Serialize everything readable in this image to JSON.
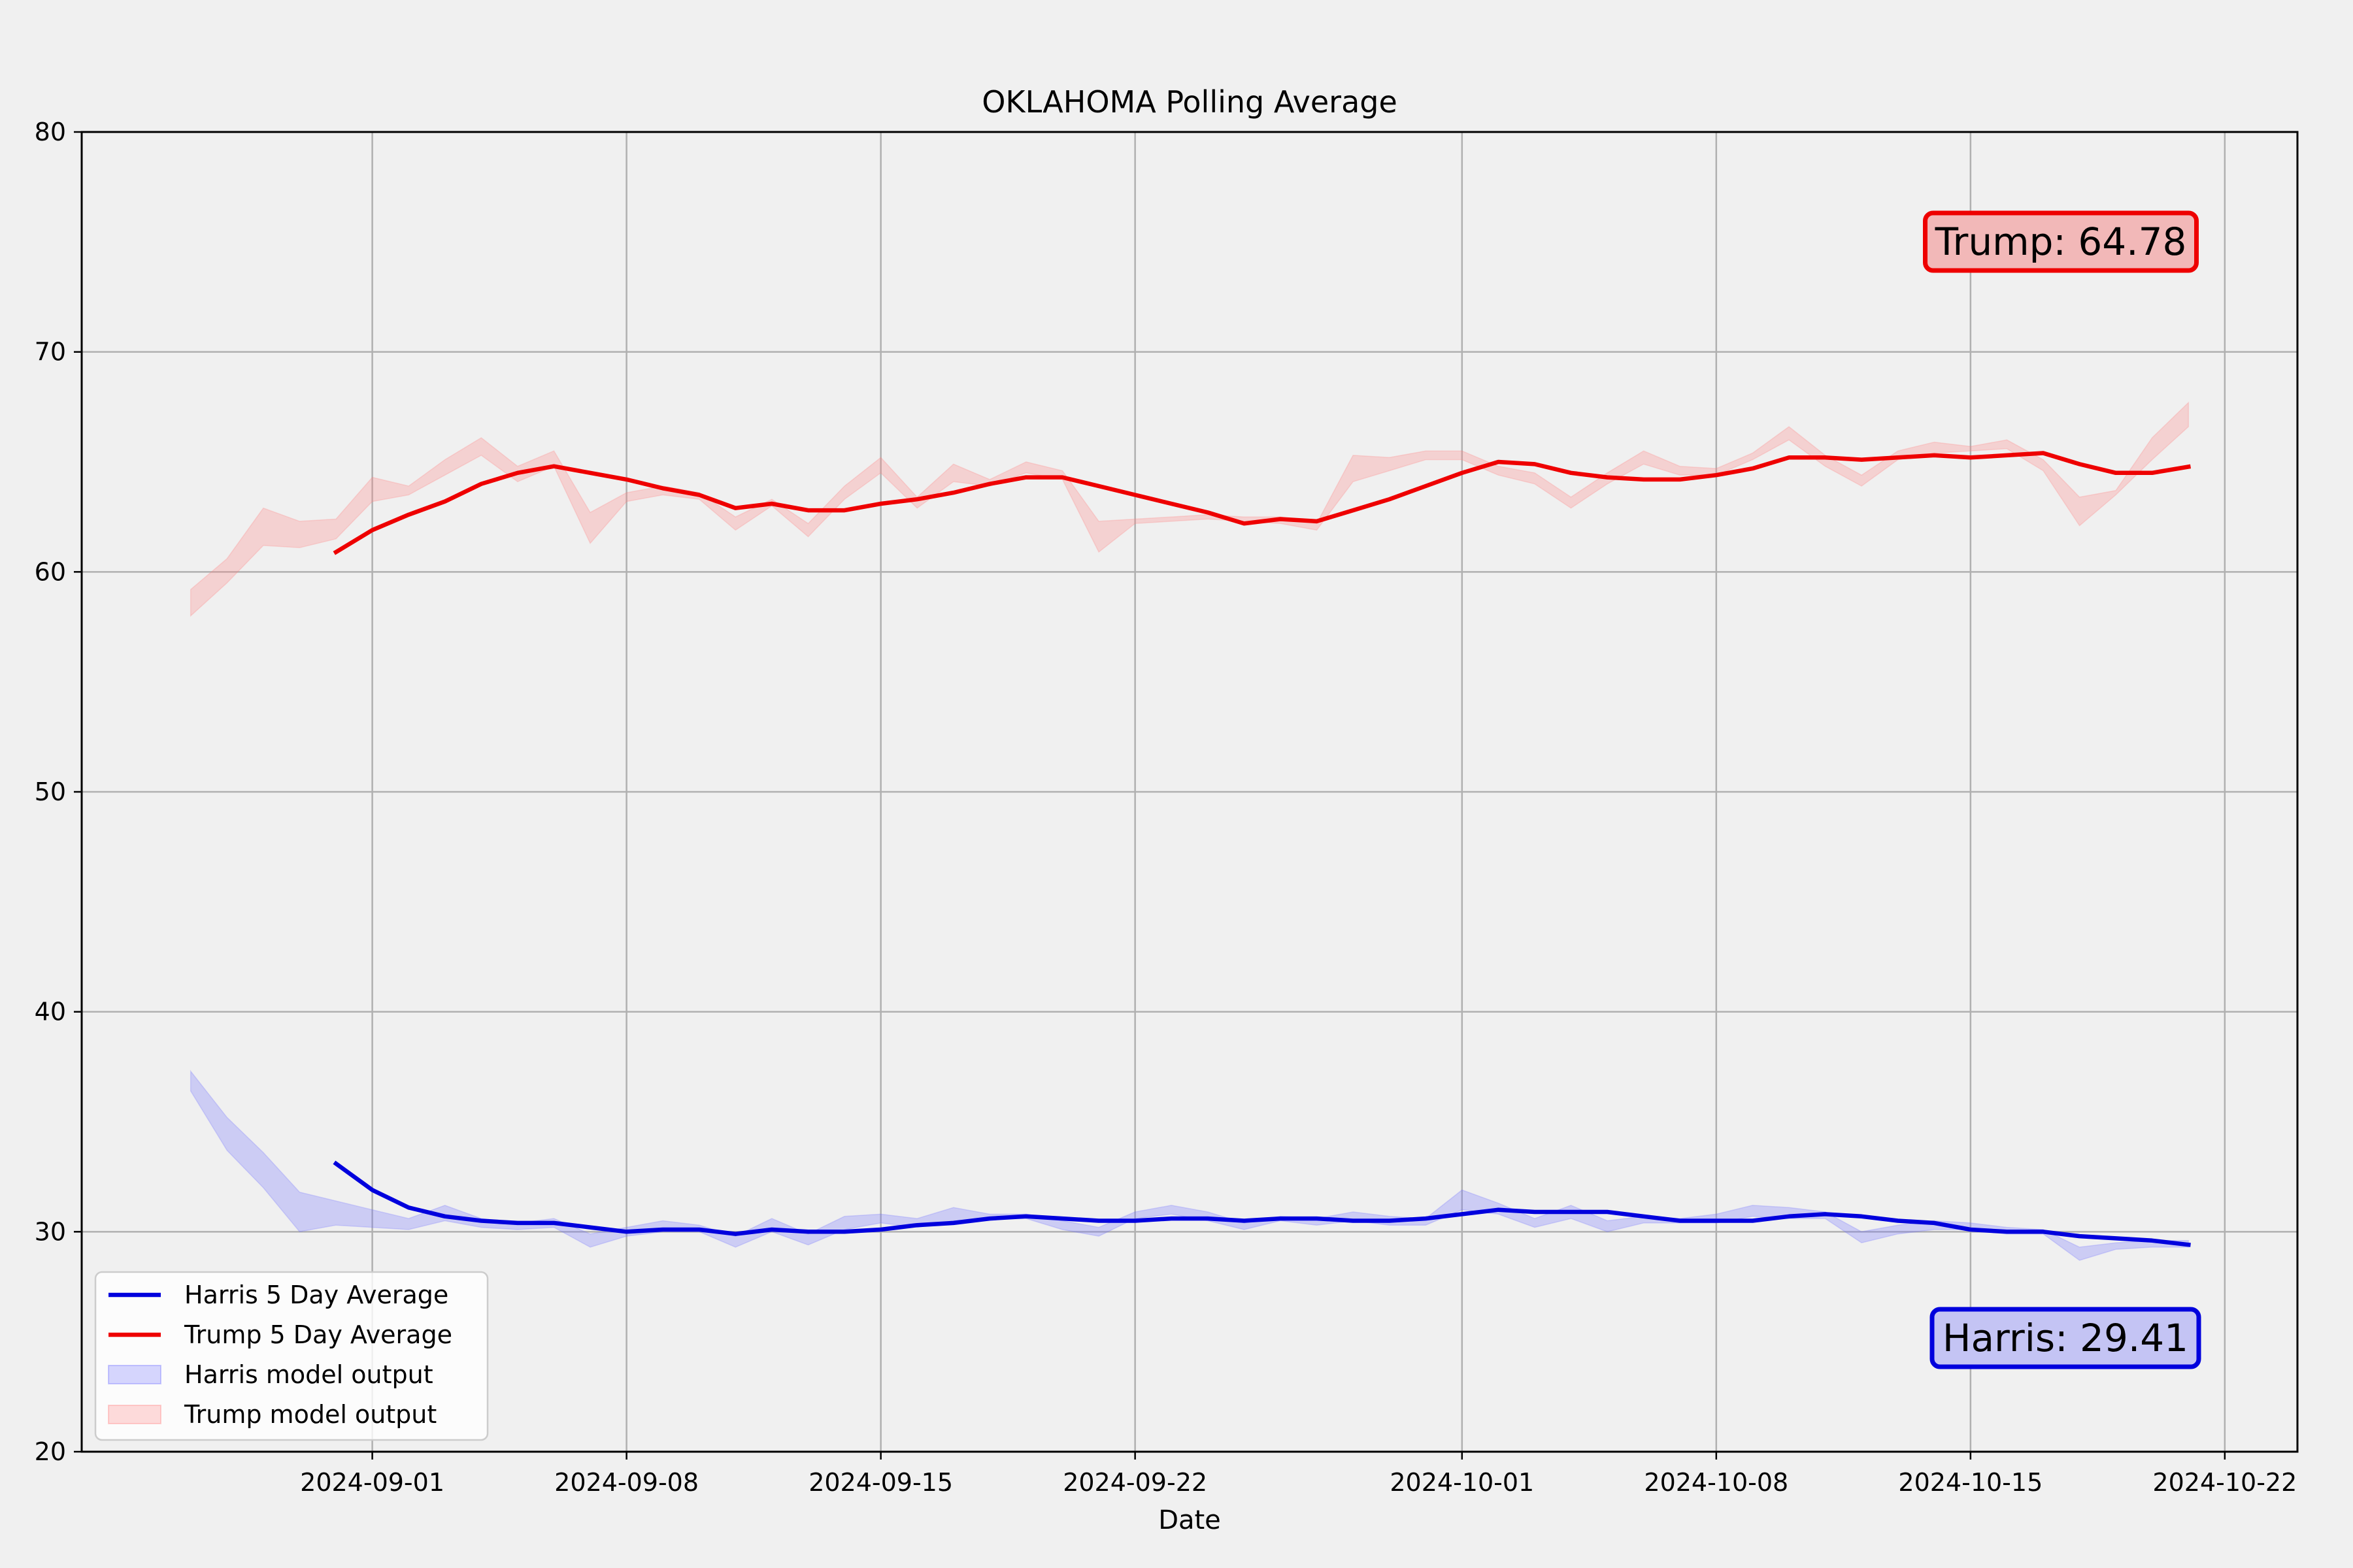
{
  "chart_data": {
    "type": "line",
    "title": "OKLAHOMA Polling Average",
    "xlabel": "Date",
    "ylabel": "",
    "ylim": [
      20,
      80
    ],
    "xlim": [
      "2024-08-24",
      "2024-10-24"
    ],
    "grid": true,
    "legend_position": "bottom-left",
    "y_ticks": [
      "20",
      "30",
      "40",
      "50",
      "60",
      "70",
      "80"
    ],
    "x_ticks": [
      "2024-09-01",
      "2024-09-08",
      "2024-09-15",
      "2024-09-22",
      "2024-10-01",
      "2024-10-08",
      "2024-10-15",
      "2024-10-22"
    ],
    "series": [
      {
        "name": "Harris 5 Day Average",
        "kind": "line",
        "color": "#0000dd",
        "points": [
          [
            "2024-08-31",
            33.1
          ],
          [
            "2024-09-01",
            31.9
          ],
          [
            "2024-09-02",
            31.1
          ],
          [
            "2024-09-03",
            30.7
          ],
          [
            "2024-09-04",
            30.5
          ],
          [
            "2024-09-05",
            30.4
          ],
          [
            "2024-09-06",
            30.4
          ],
          [
            "2024-09-07",
            30.2
          ],
          [
            "2024-09-08",
            30.0
          ],
          [
            "2024-09-09",
            30.1
          ],
          [
            "2024-09-10",
            30.1
          ],
          [
            "2024-09-11",
            29.9
          ],
          [
            "2024-09-12",
            30.1
          ],
          [
            "2024-09-13",
            30.0
          ],
          [
            "2024-09-14",
            30.0
          ],
          [
            "2024-09-15",
            30.1
          ],
          [
            "2024-09-16",
            30.3
          ],
          [
            "2024-09-17",
            30.4
          ],
          [
            "2024-09-18",
            30.6
          ],
          [
            "2024-09-19",
            30.7
          ],
          [
            "2024-09-20",
            30.6
          ],
          [
            "2024-09-21",
            30.5
          ],
          [
            "2024-09-22",
            30.5
          ],
          [
            "2024-09-23",
            30.6
          ],
          [
            "2024-09-24",
            30.6
          ],
          [
            "2024-09-25",
            30.5
          ],
          [
            "2024-09-26",
            30.6
          ],
          [
            "2024-09-27",
            30.6
          ],
          [
            "2024-09-28",
            30.5
          ],
          [
            "2024-09-29",
            30.5
          ],
          [
            "2024-09-30",
            30.6
          ],
          [
            "2024-10-01",
            30.8
          ],
          [
            "2024-10-02",
            31.0
          ],
          [
            "2024-10-03",
            30.9
          ],
          [
            "2024-10-04",
            30.9
          ],
          [
            "2024-10-05",
            30.9
          ],
          [
            "2024-10-06",
            30.7
          ],
          [
            "2024-10-07",
            30.5
          ],
          [
            "2024-10-08",
            30.5
          ],
          [
            "2024-10-09",
            30.5
          ],
          [
            "2024-10-10",
            30.7
          ],
          [
            "2024-10-11",
            30.8
          ],
          [
            "2024-10-12",
            30.7
          ],
          [
            "2024-10-13",
            30.5
          ],
          [
            "2024-10-14",
            30.4
          ],
          [
            "2024-10-15",
            30.1
          ],
          [
            "2024-10-16",
            30.0
          ],
          [
            "2024-10-17",
            30.0
          ],
          [
            "2024-10-18",
            29.8
          ],
          [
            "2024-10-19",
            29.7
          ],
          [
            "2024-10-20",
            29.6
          ],
          [
            "2024-10-21",
            29.41
          ]
        ]
      },
      {
        "name": "Trump 5 Day Average",
        "kind": "line",
        "color": "#ee0000",
        "points": [
          [
            "2024-08-31",
            60.9
          ],
          [
            "2024-09-01",
            61.9
          ],
          [
            "2024-09-02",
            62.6
          ],
          [
            "2024-09-03",
            63.2
          ],
          [
            "2024-09-04",
            64.0
          ],
          [
            "2024-09-05",
            64.5
          ],
          [
            "2024-09-06",
            64.8
          ],
          [
            "2024-09-07",
            64.5
          ],
          [
            "2024-09-08",
            64.2
          ],
          [
            "2024-09-09",
            63.8
          ],
          [
            "2024-09-10",
            63.5
          ],
          [
            "2024-09-11",
            62.9
          ],
          [
            "2024-09-12",
            63.1
          ],
          [
            "2024-09-13",
            62.8
          ],
          [
            "2024-09-14",
            62.8
          ],
          [
            "2024-09-15",
            63.1
          ],
          [
            "2024-09-16",
            63.3
          ],
          [
            "2024-09-17",
            63.6
          ],
          [
            "2024-09-18",
            64.0
          ],
          [
            "2024-09-19",
            64.3
          ],
          [
            "2024-09-20",
            64.3
          ],
          [
            "2024-09-21",
            63.9
          ],
          [
            "2024-09-22",
            63.5
          ],
          [
            "2024-09-23",
            63.1
          ],
          [
            "2024-09-24",
            62.7
          ],
          [
            "2024-09-25",
            62.2
          ],
          [
            "2024-09-26",
            62.4
          ],
          [
            "2024-09-27",
            62.3
          ],
          [
            "2024-09-28",
            62.8
          ],
          [
            "2024-09-29",
            63.3
          ],
          [
            "2024-09-30",
            63.9
          ],
          [
            "2024-10-01",
            64.5
          ],
          [
            "2024-10-02",
            65.0
          ],
          [
            "2024-10-03",
            64.9
          ],
          [
            "2024-10-04",
            64.5
          ],
          [
            "2024-10-05",
            64.3
          ],
          [
            "2024-10-06",
            64.2
          ],
          [
            "2024-10-07",
            64.2
          ],
          [
            "2024-10-08",
            64.4
          ],
          [
            "2024-10-09",
            64.7
          ],
          [
            "2024-10-10",
            65.2
          ],
          [
            "2024-10-11",
            65.2
          ],
          [
            "2024-10-12",
            65.1
          ],
          [
            "2024-10-13",
            65.2
          ],
          [
            "2024-10-14",
            65.3
          ],
          [
            "2024-10-15",
            65.2
          ],
          [
            "2024-10-16",
            65.3
          ],
          [
            "2024-10-17",
            65.4
          ],
          [
            "2024-10-18",
            64.9
          ],
          [
            "2024-10-19",
            64.5
          ],
          [
            "2024-10-20",
            64.5
          ],
          [
            "2024-10-21",
            64.78
          ]
        ]
      },
      {
        "name": "Harris model output",
        "kind": "band",
        "color": "#7070ff",
        "points": [
          [
            "2024-08-27",
            36.4,
            37.3
          ],
          [
            "2024-08-28",
            33.7,
            35.2
          ],
          [
            "2024-08-29",
            32.0,
            33.6
          ],
          [
            "2024-08-30",
            30.0,
            31.8
          ],
          [
            "2024-08-31",
            30.3,
            31.4
          ],
          [
            "2024-09-01",
            30.2,
            31.0
          ],
          [
            "2024-09-02",
            30.1,
            30.6
          ],
          [
            "2024-09-03",
            30.5,
            31.2
          ],
          [
            "2024-09-04",
            30.2,
            30.6
          ],
          [
            "2024-09-05",
            30.1,
            30.4
          ],
          [
            "2024-09-06",
            30.2,
            30.6
          ],
          [
            "2024-09-07",
            29.3,
            29.9
          ],
          [
            "2024-09-08",
            29.8,
            30.2
          ],
          [
            "2024-09-09",
            30.0,
            30.5
          ],
          [
            "2024-09-10",
            30.0,
            30.3
          ],
          [
            "2024-09-11",
            29.3,
            29.8
          ],
          [
            "2024-09-12",
            30.0,
            30.6
          ],
          [
            "2024-09-13",
            29.4,
            29.9
          ],
          [
            "2024-09-14",
            30.1,
            30.7
          ],
          [
            "2024-09-15",
            30.4,
            30.8
          ],
          [
            "2024-09-16",
            30.2,
            30.6
          ],
          [
            "2024-09-17",
            30.5,
            31.1
          ],
          [
            "2024-09-18",
            30.6,
            30.8
          ],
          [
            "2024-09-19",
            30.6,
            30.8
          ],
          [
            "2024-09-20",
            30.1,
            30.5
          ],
          [
            "2024-09-21",
            29.8,
            30.2
          ],
          [
            "2024-09-22",
            30.6,
            30.9
          ],
          [
            "2024-09-23",
            30.8,
            31.2
          ],
          [
            "2024-09-24",
            30.5,
            30.9
          ],
          [
            "2024-09-25",
            30.1,
            30.4
          ],
          [
            "2024-09-26",
            30.5,
            30.7
          ],
          [
            "2024-09-27",
            30.3,
            30.6
          ],
          [
            "2024-09-28",
            30.5,
            30.9
          ],
          [
            "2024-09-29",
            30.3,
            30.7
          ],
          [
            "2024-09-30",
            30.3,
            30.6
          ],
          [
            "2024-10-01",
            31.0,
            31.9
          ],
          [
            "2024-10-02",
            30.8,
            31.3
          ],
          [
            "2024-10-03",
            30.2,
            30.6
          ],
          [
            "2024-10-04",
            30.6,
            31.2
          ],
          [
            "2024-10-05",
            30.0,
            30.5
          ],
          [
            "2024-10-06",
            30.4,
            30.7
          ],
          [
            "2024-10-07",
            30.4,
            30.6
          ],
          [
            "2024-10-08",
            30.4,
            30.8
          ],
          [
            "2024-10-09",
            30.7,
            31.2
          ],
          [
            "2024-10-10",
            30.6,
            31.1
          ],
          [
            "2024-10-11",
            30.6,
            30.9
          ],
          [
            "2024-10-12",
            29.5,
            30.0
          ],
          [
            "2024-10-13",
            29.9,
            30.3
          ],
          [
            "2024-10-14",
            30.1,
            30.5
          ],
          [
            "2024-10-15",
            30.1,
            30.4
          ],
          [
            "2024-10-16",
            29.9,
            30.2
          ],
          [
            "2024-10-17",
            29.9,
            30.1
          ],
          [
            "2024-10-18",
            28.7,
            29.3
          ],
          [
            "2024-10-19",
            29.2,
            29.5
          ],
          [
            "2024-10-20",
            29.3,
            29.6
          ],
          [
            "2024-10-21",
            29.3,
            29.6
          ]
        ]
      },
      {
        "name": "Trump model output",
        "kind": "band",
        "color": "#ff8080",
        "points": [
          [
            "2024-08-27",
            58.0,
            59.2
          ],
          [
            "2024-08-28",
            59.5,
            60.6
          ],
          [
            "2024-08-29",
            61.2,
            62.9
          ],
          [
            "2024-08-30",
            61.1,
            62.3
          ],
          [
            "2024-08-31",
            61.5,
            62.4
          ],
          [
            "2024-09-01",
            63.2,
            64.3
          ],
          [
            "2024-09-02",
            63.5,
            63.9
          ],
          [
            "2024-09-03",
            64.4,
            65.1
          ],
          [
            "2024-09-04",
            65.3,
            66.1
          ],
          [
            "2024-09-05",
            64.1,
            64.8
          ],
          [
            "2024-09-06",
            64.8,
            65.5
          ],
          [
            "2024-09-07",
            61.3,
            62.7
          ],
          [
            "2024-09-08",
            63.2,
            63.6
          ],
          [
            "2024-09-09",
            63.5,
            63.9
          ],
          [
            "2024-09-10",
            63.3,
            63.6
          ],
          [
            "2024-09-11",
            61.9,
            62.5
          ],
          [
            "2024-09-12",
            63.0,
            63.3
          ],
          [
            "2024-09-13",
            61.6,
            62.2
          ],
          [
            "2024-09-14",
            63.3,
            63.9
          ],
          [
            "2024-09-15",
            64.5,
            65.2
          ],
          [
            "2024-09-16",
            62.9,
            63.4
          ],
          [
            "2024-09-17",
            64.1,
            64.9
          ],
          [
            "2024-09-18",
            63.9,
            64.2
          ],
          [
            "2024-09-19",
            64.5,
            65.0
          ],
          [
            "2024-09-20",
            64.2,
            64.6
          ],
          [
            "2024-09-21",
            60.9,
            62.3
          ],
          [
            "2024-09-22",
            62.2,
            62.4
          ],
          [
            "2024-09-23",
            62.3,
            62.5
          ],
          [
            "2024-09-24",
            62.4,
            62.6
          ],
          [
            "2024-09-25",
            62.3,
            62.5
          ],
          [
            "2024-09-26",
            62.2,
            62.5
          ],
          [
            "2024-09-27",
            61.9,
            62.2
          ],
          [
            "2024-09-28",
            64.1,
            65.3
          ],
          [
            "2024-09-29",
            64.6,
            65.2
          ],
          [
            "2024-09-30",
            65.1,
            65.5
          ],
          [
            "2024-10-01",
            65.1,
            65.5
          ],
          [
            "2024-10-02",
            64.4,
            64.8
          ],
          [
            "2024-10-03",
            64.0,
            64.5
          ],
          [
            "2024-10-04",
            62.9,
            63.4
          ],
          [
            "2024-10-05",
            64.0,
            64.5
          ],
          [
            "2024-10-06",
            64.9,
            65.5
          ],
          [
            "2024-10-07",
            64.4,
            64.8
          ],
          [
            "2024-10-08",
            64.4,
            64.7
          ],
          [
            "2024-10-09",
            65.1,
            65.4
          ],
          [
            "2024-10-10",
            66.0,
            66.6
          ],
          [
            "2024-10-11",
            64.8,
            65.3
          ],
          [
            "2024-10-12",
            63.9,
            64.4
          ],
          [
            "2024-10-13",
            65.1,
            65.5
          ],
          [
            "2024-10-14",
            65.4,
            65.9
          ],
          [
            "2024-10-15",
            65.5,
            65.7
          ],
          [
            "2024-10-16",
            65.6,
            66.0
          ],
          [
            "2024-10-17",
            64.6,
            65.1
          ],
          [
            "2024-10-18",
            62.1,
            63.4
          ],
          [
            "2024-10-19",
            63.5,
            63.7
          ],
          [
            "2024-10-20",
            65.1,
            66.1
          ],
          [
            "2024-10-21",
            66.6,
            67.7
          ]
        ]
      }
    ],
    "annotations": [
      {
        "text": "Trump: 64.78",
        "fill": "#f2b8b8",
        "edge": "#ee0000",
        "position": "upper-right"
      },
      {
        "text": "Harris: 29.41",
        "fill": "#c4c4f4",
        "edge": "#0000dd",
        "position": "lower-right"
      }
    ]
  }
}
